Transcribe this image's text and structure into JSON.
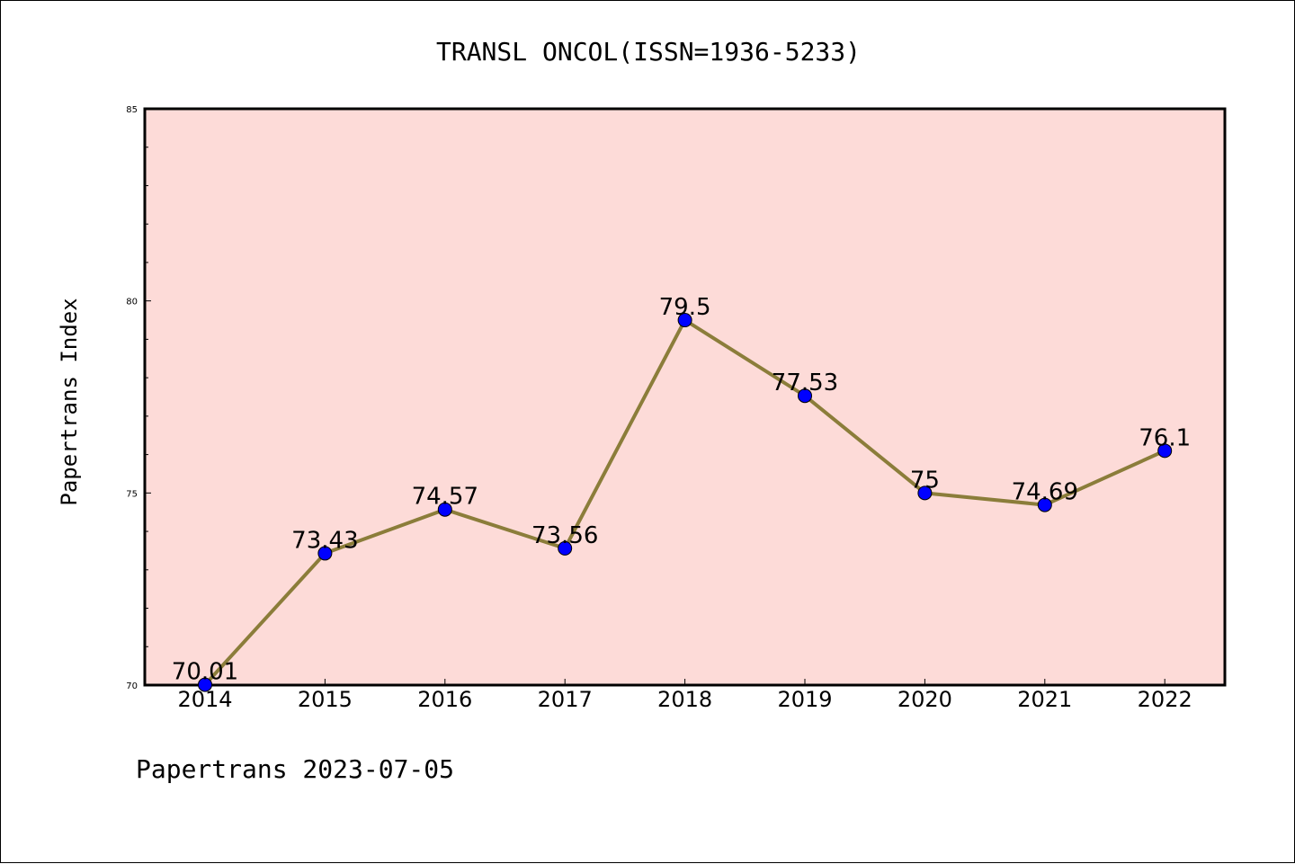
{
  "chart_data": {
    "type": "line",
    "title": "TRANSL ONCOL(ISSN=1936-5233)",
    "xlabel": "",
    "ylabel": "Papertrans Index",
    "categories": [
      "2014",
      "2015",
      "2016",
      "2017",
      "2018",
      "2019",
      "2020",
      "2021",
      "2022"
    ],
    "series": [
      {
        "values": [
          70.01,
          73.43,
          74.57,
          73.56,
          79.5,
          77.53,
          75,
          74.69,
          76.1
        ],
        "labels": [
          "70.01",
          "73.43",
          "74.57",
          "73.56",
          "79.5",
          "77.53",
          "75",
          "74.69",
          "76.1"
        ]
      }
    ],
    "ylim": [
      70,
      85
    ],
    "yticks": [
      "70",
      "75",
      "80",
      "85"
    ],
    "grid": false,
    "background_color": "#fddbd8",
    "line_color": "#8b7d3a",
    "marker_color": "#0000ff",
    "footer": "Papertrans 2023-07-05"
  }
}
